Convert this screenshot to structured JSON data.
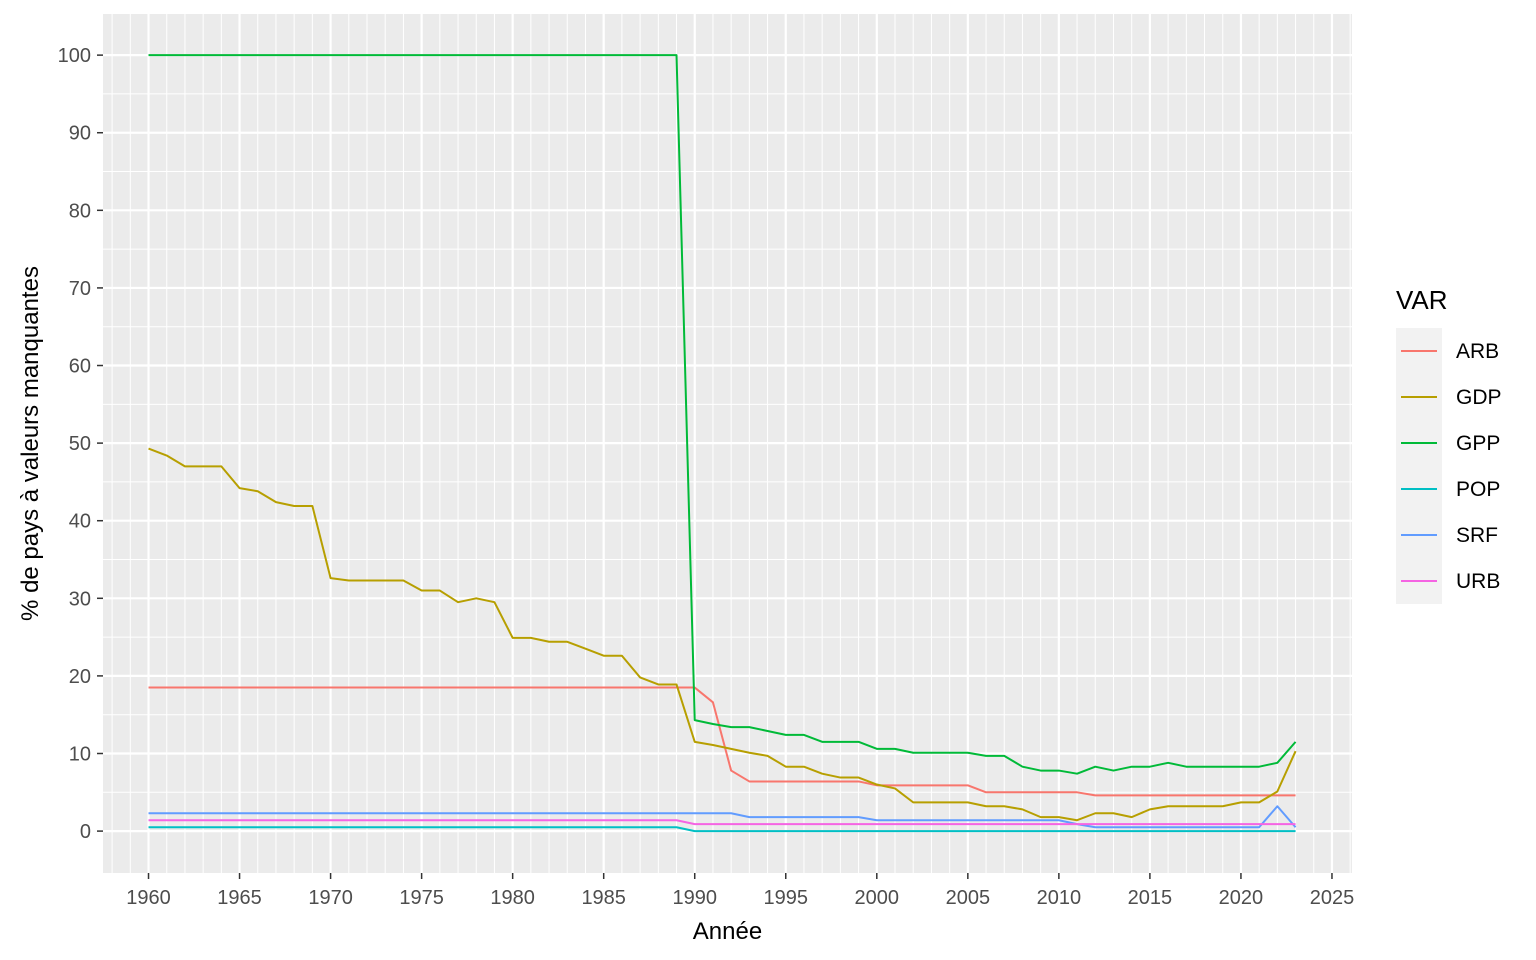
{
  "chart_data": {
    "type": "line",
    "xlabel": "Année",
    "ylabel": "% de pays à valeurs manquantes",
    "xlim": [
      1957.5,
      2026.1
    ],
    "ylim": [
      -5.4,
      105.3
    ],
    "x_ticks": [
      1960,
      1965,
      1970,
      1975,
      1980,
      1985,
      1990,
      1995,
      2000,
      2005,
      2010,
      2015,
      2020,
      2025
    ],
    "y_ticks": [
      0,
      10,
      20,
      30,
      40,
      50,
      60,
      70,
      80,
      90,
      100
    ],
    "x_tick_labels": [
      "1960",
      "1965",
      "1970",
      "1975",
      "1980",
      "1985",
      "1990",
      "1995",
      "2000",
      "2005",
      "2010",
      "2015",
      "2020",
      "2025"
    ],
    "y_tick_labels": [
      "0",
      "10",
      "20",
      "30",
      "40",
      "50",
      "60",
      "70",
      "80",
      "90",
      "100"
    ],
    "grid": true,
    "legend": {
      "title": "VAR",
      "position": "right"
    },
    "x": [
      1960,
      1961,
      1962,
      1963,
      1964,
      1965,
      1966,
      1967,
      1968,
      1969,
      1970,
      1971,
      1972,
      1973,
      1974,
      1975,
      1976,
      1977,
      1978,
      1979,
      1980,
      1981,
      1982,
      1983,
      1984,
      1985,
      1986,
      1987,
      1988,
      1989,
      1990,
      1991,
      1992,
      1993,
      1994,
      1995,
      1996,
      1997,
      1998,
      1999,
      2000,
      2001,
      2002,
      2003,
      2004,
      2005,
      2006,
      2007,
      2008,
      2009,
      2010,
      2011,
      2012,
      2013,
      2014,
      2015,
      2016,
      2017,
      2018,
      2019,
      2020,
      2021,
      2022,
      2023
    ],
    "series": [
      {
        "name": "ARB",
        "color": "#F8766D",
        "values": [
          18.5,
          18.5,
          18.5,
          18.5,
          18.5,
          18.5,
          18.5,
          18.5,
          18.5,
          18.5,
          18.5,
          18.5,
          18.5,
          18.5,
          18.5,
          18.5,
          18.5,
          18.5,
          18.5,
          18.5,
          18.5,
          18.5,
          18.5,
          18.5,
          18.5,
          18.5,
          18.5,
          18.5,
          18.5,
          18.5,
          18.5,
          16.6,
          7.8,
          6.4,
          6.4,
          6.4,
          6.4,
          6.4,
          6.4,
          6.4,
          5.9,
          5.9,
          5.9,
          5.9,
          5.9,
          5.9,
          5.0,
          5.0,
          5.0,
          5.0,
          5.0,
          5.0,
          4.6,
          4.6,
          4.6,
          4.6,
          4.6,
          4.6,
          4.6,
          4.6,
          4.6,
          4.6,
          4.6,
          4.6
        ]
      },
      {
        "name": "GDP",
        "color": "#B79F00",
        "values": [
          49.3,
          48.4,
          47.0,
          47.0,
          47.0,
          44.2,
          43.8,
          42.4,
          41.9,
          41.9,
          32.6,
          32.3,
          32.3,
          32.3,
          32.3,
          31.0,
          31.0,
          29.5,
          30.0,
          29.5,
          24.9,
          24.9,
          24.4,
          24.4,
          23.5,
          22.6,
          22.6,
          19.8,
          18.9,
          18.9,
          11.5,
          11.1,
          10.6,
          10.1,
          9.7,
          8.3,
          8.3,
          7.4,
          6.9,
          6.9,
          6.0,
          5.5,
          3.7,
          3.7,
          3.7,
          3.7,
          3.2,
          3.2,
          2.8,
          1.8,
          1.8,
          1.4,
          2.3,
          2.3,
          1.8,
          2.8,
          3.2,
          3.2,
          3.2,
          3.2,
          3.7,
          3.7,
          5.1,
          10.3
        ]
      },
      {
        "name": "GPP",
        "color": "#00BA38",
        "values": [
          100,
          100,
          100,
          100,
          100,
          100,
          100,
          100,
          100,
          100,
          100,
          100,
          100,
          100,
          100,
          100,
          100,
          100,
          100,
          100,
          100,
          100,
          100,
          100,
          100,
          100,
          100,
          100,
          100,
          100,
          14.3,
          13.8,
          13.4,
          13.4,
          12.9,
          12.4,
          12.4,
          11.5,
          11.5,
          11.5,
          10.6,
          10.6,
          10.1,
          10.1,
          10.1,
          10.1,
          9.7,
          9.7,
          8.3,
          7.8,
          7.8,
          7.4,
          8.3,
          7.8,
          8.3,
          8.3,
          8.8,
          8.3,
          8.3,
          8.3,
          8.3,
          8.3,
          8.8,
          11.5
        ]
      },
      {
        "name": "POP",
        "color": "#00BFC4",
        "values": [
          0.5,
          0.5,
          0.5,
          0.5,
          0.5,
          0.5,
          0.5,
          0.5,
          0.5,
          0.5,
          0.5,
          0.5,
          0.5,
          0.5,
          0.5,
          0.5,
          0.5,
          0.5,
          0.5,
          0.5,
          0.5,
          0.5,
          0.5,
          0.5,
          0.5,
          0.5,
          0.5,
          0.5,
          0.5,
          0.5,
          0,
          0,
          0,
          0,
          0,
          0,
          0,
          0,
          0,
          0,
          0,
          0,
          0,
          0,
          0,
          0,
          0,
          0,
          0,
          0,
          0,
          0,
          0,
          0,
          0,
          0,
          0,
          0,
          0,
          0,
          0,
          0,
          0,
          0
        ]
      },
      {
        "name": "SRF",
        "color": "#619CFF",
        "values": [
          2.3,
          2.3,
          2.3,
          2.3,
          2.3,
          2.3,
          2.3,
          2.3,
          2.3,
          2.3,
          2.3,
          2.3,
          2.3,
          2.3,
          2.3,
          2.3,
          2.3,
          2.3,
          2.3,
          2.3,
          2.3,
          2.3,
          2.3,
          2.3,
          2.3,
          2.3,
          2.3,
          2.3,
          2.3,
          2.3,
          2.3,
          2.3,
          2.3,
          1.8,
          1.8,
          1.8,
          1.8,
          1.8,
          1.8,
          1.8,
          1.4,
          1.4,
          1.4,
          1.4,
          1.4,
          1.4,
          1.4,
          1.4,
          1.4,
          1.4,
          1.4,
          0.9,
          0.5,
          0.5,
          0.5,
          0.5,
          0.5,
          0.5,
          0.5,
          0.5,
          0.5,
          0.5,
          3.2,
          0.5
        ]
      },
      {
        "name": "URB",
        "color": "#F564E3",
        "values": [
          1.4,
          1.4,
          1.4,
          1.4,
          1.4,
          1.4,
          1.4,
          1.4,
          1.4,
          1.4,
          1.4,
          1.4,
          1.4,
          1.4,
          1.4,
          1.4,
          1.4,
          1.4,
          1.4,
          1.4,
          1.4,
          1.4,
          1.4,
          1.4,
          1.4,
          1.4,
          1.4,
          1.4,
          1.4,
          1.4,
          0.9,
          0.9,
          0.9,
          0.9,
          0.9,
          0.9,
          0.9,
          0.9,
          0.9,
          0.9,
          0.9,
          0.9,
          0.9,
          0.9,
          0.9,
          0.9,
          0.9,
          0.9,
          0.9,
          0.9,
          0.9,
          0.9,
          0.9,
          0.9,
          0.9,
          0.9,
          0.9,
          0.9,
          0.9,
          0.9,
          0.9,
          0.9,
          0.9,
          0.9
        ]
      }
    ]
  }
}
